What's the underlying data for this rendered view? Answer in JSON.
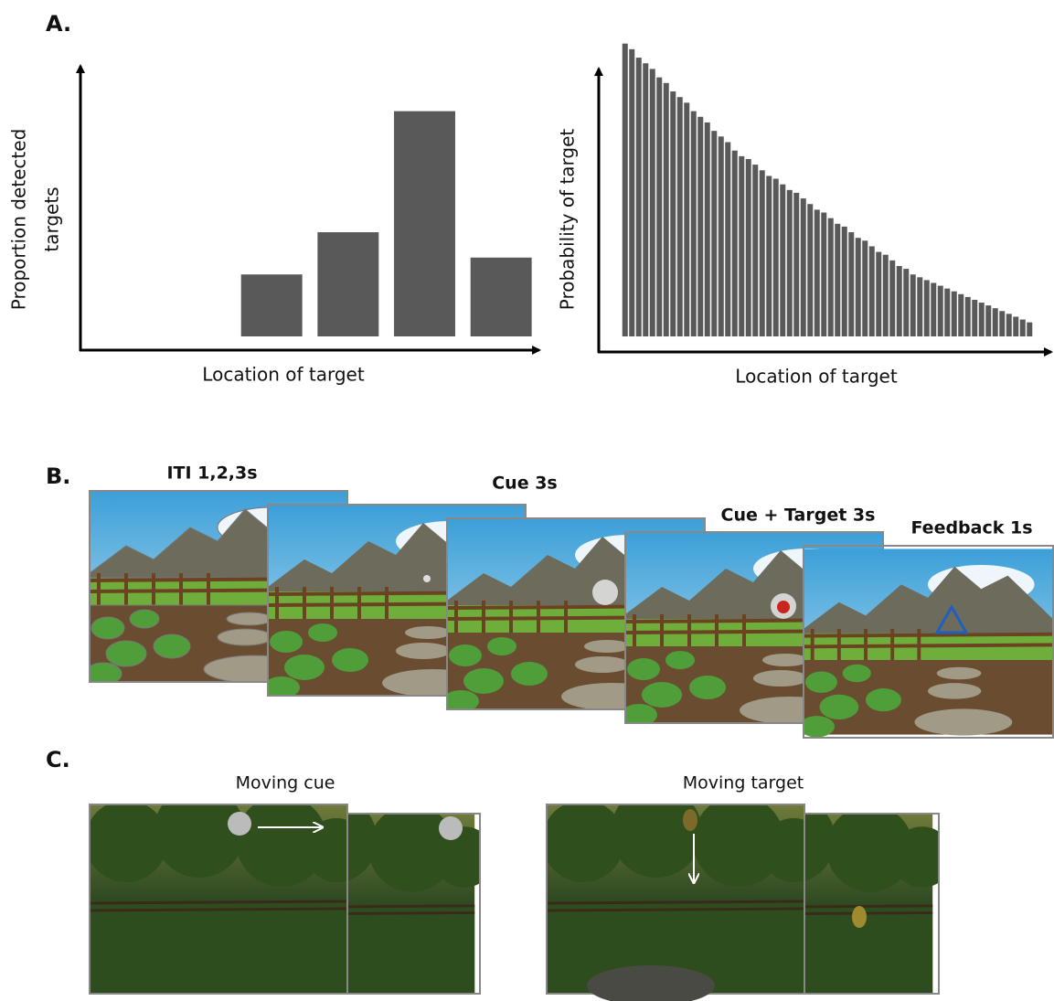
{
  "chart_data": [
    {
      "type": "bar",
      "x_label": "Location of target",
      "y_label": [
        "Proportion detected",
        "targets"
      ],
      "values": [
        null,
        null,
        22,
        37,
        80,
        28
      ],
      "color": "#595959",
      "ylim": [
        0,
        100
      ]
    },
    {
      "type": "bar",
      "x_label": "Location of target",
      "y_label": [
        "Probability of target"
      ],
      "values": [
        104,
        102,
        99,
        97,
        95,
        92,
        90,
        87,
        85,
        83,
        80,
        78,
        76,
        73,
        71,
        69,
        66,
        64,
        63,
        61,
        59,
        57,
        56,
        54,
        52,
        51,
        49,
        47,
        45,
        44,
        42,
        40,
        39,
        37,
        35,
        34,
        32,
        30,
        29,
        27,
        25,
        24,
        22,
        21,
        20,
        19,
        18,
        17,
        16,
        15,
        14,
        13,
        12,
        11,
        10,
        9,
        8,
        7,
        6,
        5
      ],
      "color": "#595959",
      "ylim": [
        0,
        100
      ]
    }
  ],
  "panels": {
    "a": "A.",
    "b": "B.",
    "c": "C."
  },
  "steps": [
    "ITI 1,2,3s",
    "Cue 3s",
    "Cue + Target 3s",
    "Feedback 1s"
  ],
  "moving": [
    "Moving cue",
    "Moving target"
  ]
}
